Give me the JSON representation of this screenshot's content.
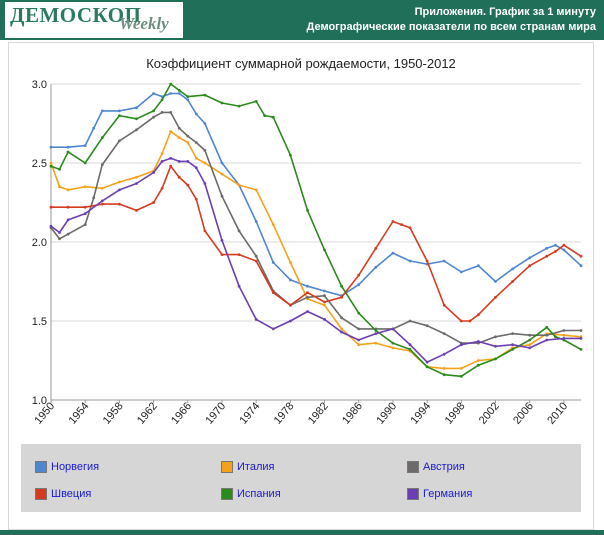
{
  "header": {
    "logo_main": "ДЕМОСКОП",
    "logo_sub": "Weekly",
    "line1": "Приложения. График за 1 минуту",
    "line2": "Демографические показатели по всем странам мира"
  },
  "colors": {
    "header_bg": "#1f6f59",
    "grid": "#d9d9d9",
    "legend_bg": "#d6d6d6",
    "legend_text": "#1a1ad0"
  },
  "chart_data": {
    "type": "line",
    "title": "Коэффициент суммарной рождаемости, 1950-2012",
    "xlabel": "",
    "ylabel": "",
    "xlim": [
      1950,
      2012
    ],
    "ylim": [
      1.0,
      3.0
    ],
    "yticks": [
      "1.0",
      "1.5",
      "2.0",
      "2.5",
      "3.0"
    ],
    "xticks": [
      "1950",
      "1954",
      "1958",
      "1962",
      "1966",
      "1970",
      "1974",
      "1978",
      "1982",
      "1986",
      "1990",
      "1994",
      "1998",
      "2002",
      "2006",
      "2010"
    ],
    "grid": true,
    "legend_position": "bottom",
    "series": [
      {
        "name": "Норвегия",
        "color": "#4f86d0",
        "x": [
          1950,
          1952,
          1954,
          1955,
          1956,
          1958,
          1960,
          1962,
          1963,
          1964,
          1965,
          1966,
          1967,
          1968,
          1970,
          1972,
          1974,
          1976,
          1978,
          1980,
          1982,
          1984,
          1986,
          1988,
          1990,
          1992,
          1994,
          1996,
          1998,
          2000,
          2002,
          2004,
          2006,
          2008,
          2009,
          2010,
          2012
        ],
        "values": [
          2.6,
          2.6,
          2.61,
          2.72,
          2.83,
          2.83,
          2.85,
          2.94,
          2.92,
          2.94,
          2.94,
          2.9,
          2.81,
          2.75,
          2.5,
          2.36,
          2.13,
          1.87,
          1.76,
          1.72,
          1.69,
          1.66,
          1.73,
          1.84,
          1.93,
          1.88,
          1.86,
          1.88,
          1.81,
          1.85,
          1.75,
          1.83,
          1.9,
          1.96,
          1.98,
          1.95,
          1.85
        ]
      },
      {
        "name": "Италия",
        "color": "#f5a21b",
        "x": [
          1950,
          1951,
          1952,
          1954,
          1956,
          1958,
          1960,
          1962,
          1963,
          1964,
          1965,
          1966,
          1967,
          1968,
          1970,
          1972,
          1974,
          1976,
          1978,
          1980,
          1982,
          1984,
          1986,
          1988,
          1990,
          1992,
          1994,
          1996,
          1998,
          2000,
          2002,
          2004,
          2006,
          2008,
          2010,
          2012
        ],
        "values": [
          2.5,
          2.35,
          2.33,
          2.35,
          2.34,
          2.38,
          2.41,
          2.45,
          2.56,
          2.7,
          2.66,
          2.63,
          2.53,
          2.5,
          2.43,
          2.36,
          2.33,
          2.11,
          1.87,
          1.64,
          1.6,
          1.45,
          1.35,
          1.36,
          1.33,
          1.31,
          1.21,
          1.2,
          1.2,
          1.25,
          1.26,
          1.33,
          1.35,
          1.42,
          1.41,
          1.4
        ]
      },
      {
        "name": "Австрия",
        "color": "#6c6a6a",
        "x": [
          1950,
          1951,
          1952,
          1954,
          1955,
          1956,
          1958,
          1960,
          1962,
          1963,
          1964,
          1965,
          1966,
          1967,
          1968,
          1970,
          1972,
          1974,
          1976,
          1978,
          1980,
          1982,
          1984,
          1986,
          1988,
          1990,
          1992,
          1994,
          1996,
          1998,
          2000,
          2002,
          2004,
          2006,
          2008,
          2010,
          2012
        ],
        "values": [
          2.09,
          2.02,
          2.05,
          2.11,
          2.28,
          2.49,
          2.64,
          2.71,
          2.79,
          2.82,
          2.82,
          2.72,
          2.67,
          2.63,
          2.58,
          2.29,
          2.07,
          1.91,
          1.69,
          1.6,
          1.65,
          1.66,
          1.52,
          1.45,
          1.45,
          1.45,
          1.5,
          1.47,
          1.42,
          1.36,
          1.36,
          1.4,
          1.42,
          1.41,
          1.41,
          1.44,
          1.44
        ]
      },
      {
        "name": "Швеция",
        "color": "#d53c1f",
        "x": [
          1950,
          1952,
          1954,
          1956,
          1958,
          1960,
          1962,
          1963,
          1964,
          1965,
          1966,
          1967,
          1968,
          1970,
          1972,
          1974,
          1976,
          1978,
          1980,
          1982,
          1984,
          1986,
          1988,
          1990,
          1991,
          1992,
          1994,
          1996,
          1998,
          1999,
          2000,
          2002,
          2004,
          2006,
          2008,
          2009,
          2010,
          2012
        ],
        "values": [
          2.22,
          2.22,
          2.22,
          2.24,
          2.24,
          2.2,
          2.25,
          2.34,
          2.48,
          2.41,
          2.36,
          2.27,
          2.07,
          1.92,
          1.92,
          1.88,
          1.68,
          1.6,
          1.68,
          1.62,
          1.65,
          1.79,
          1.96,
          2.13,
          2.11,
          2.09,
          1.88,
          1.6,
          1.5,
          1.5,
          1.54,
          1.65,
          1.75,
          1.85,
          1.91,
          1.94,
          1.98,
          1.91
        ]
      },
      {
        "name": "Испания",
        "color": "#2a8a1c",
        "x": [
          1950,
          1951,
          1952,
          1954,
          1956,
          1958,
          1960,
          1962,
          1963,
          1964,
          1965,
          1966,
          1968,
          1970,
          1972,
          1974,
          1975,
          1976,
          1978,
          1980,
          1982,
          1984,
          1986,
          1988,
          1990,
          1992,
          1994,
          1996,
          1998,
          2000,
          2002,
          2004,
          2006,
          2008,
          2009,
          2010,
          2012
        ],
        "values": [
          2.48,
          2.46,
          2.57,
          2.5,
          2.66,
          2.8,
          2.78,
          2.83,
          2.9,
          3.0,
          2.96,
          2.92,
          2.93,
          2.88,
          2.86,
          2.89,
          2.8,
          2.79,
          2.55,
          2.2,
          1.95,
          1.72,
          1.55,
          1.44,
          1.36,
          1.32,
          1.21,
          1.16,
          1.15,
          1.22,
          1.26,
          1.32,
          1.38,
          1.46,
          1.4,
          1.38,
          1.32
        ]
      },
      {
        "name": "Германия",
        "color": "#6b3fb3",
        "x": [
          1950,
          1951,
          1952,
          1954,
          1956,
          1958,
          1960,
          1962,
          1963,
          1964,
          1965,
          1966,
          1967,
          1968,
          1970,
          1972,
          1974,
          1976,
          1978,
          1980,
          1982,
          1984,
          1986,
          1988,
          1990,
          1992,
          1994,
          1996,
          1998,
          2000,
          2002,
          2004,
          2006,
          2008,
          2010,
          2012
        ],
        "values": [
          2.1,
          2.06,
          2.14,
          2.18,
          2.26,
          2.33,
          2.37,
          2.44,
          2.51,
          2.53,
          2.51,
          2.51,
          2.47,
          2.37,
          2.01,
          1.72,
          1.51,
          1.45,
          1.5,
          1.56,
          1.51,
          1.43,
          1.38,
          1.42,
          1.45,
          1.35,
          1.24,
          1.29,
          1.35,
          1.37,
          1.34,
          1.35,
          1.33,
          1.38,
          1.39,
          1.39
        ]
      }
    ]
  }
}
